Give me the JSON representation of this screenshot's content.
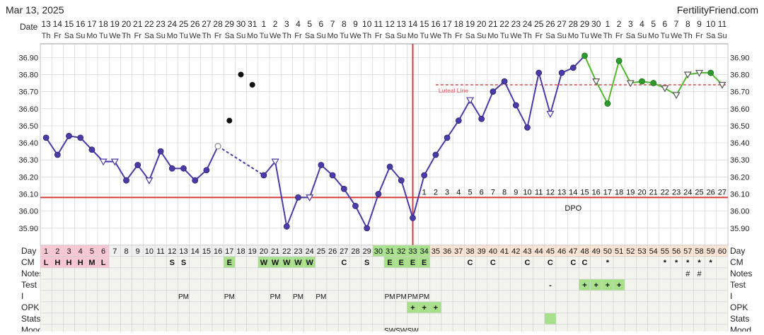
{
  "header": {
    "date": "Mar 13, 2025",
    "brand": "FertilityFriend.com",
    "date_label": "Date"
  },
  "colors": {
    "line": "#4a3ca8",
    "line_after": "#52b830",
    "coverline": "#d83a3a",
    "ovulation_line": "#d83a3a",
    "luteal_line": "#e07878",
    "menses_cell": "#f7c8d4",
    "fertile_cell": "#a8e08c",
    "luteal_cell": "#fbe4d4",
    "grid": "#d4d4d4",
    "point_hollow": "#ffffff"
  },
  "dates": [
    "13",
    "14",
    "15",
    "16",
    "17",
    "18",
    "19",
    "20",
    "21",
    "22",
    "23",
    "24",
    "25",
    "26",
    "27",
    "28",
    "29",
    "30",
    "31",
    "1",
    "2",
    "3",
    "4",
    "5",
    "6",
    "7",
    "8",
    "9",
    "10",
    "11",
    "12",
    "13",
    "14",
    "15",
    "16",
    "17",
    "18",
    "19",
    "20",
    "21",
    "22",
    "23",
    "24",
    "25",
    "26",
    "27",
    "28",
    "29",
    "30",
    "1",
    "2",
    "3",
    "4",
    "5",
    "6",
    "7",
    "8",
    "9",
    "10",
    "11"
  ],
  "weekdays": [
    "Th",
    "Fr",
    "Sa",
    "Su",
    "Mo",
    "Tu",
    "We",
    "Th",
    "Fr",
    "Sa",
    "Su",
    "Mo",
    "Tu",
    "We",
    "Th",
    "Fr",
    "Sa",
    "Su",
    "Mo",
    "Tu",
    "We",
    "Th",
    "Fr",
    "Sa",
    "Su",
    "Mo",
    "Tu",
    "We",
    "Th",
    "Fr",
    "Sa",
    "Su",
    "Mo",
    "Tu",
    "We",
    "Th",
    "Fr",
    "Sa",
    "Su",
    "Mo",
    "Tu",
    "We",
    "Th",
    "Fr",
    "Sa",
    "Su",
    "Mo",
    "Tu",
    "We",
    "Th",
    "Fr",
    "Sa",
    "Su",
    "Mo",
    "Tu",
    "We",
    "Th",
    "Fr",
    "Sa",
    "Su"
  ],
  "chart_data": {
    "type": "line",
    "x": [
      1,
      2,
      3,
      4,
      5,
      6,
      7,
      8,
      9,
      10,
      11,
      12,
      13,
      14,
      15,
      16,
      17,
      18,
      19,
      20,
      21,
      22,
      23,
      24,
      25,
      26,
      27,
      28,
      29,
      30,
      31,
      32,
      33,
      34,
      35,
      36,
      37,
      38,
      39,
      40,
      41,
      42,
      43,
      44,
      45,
      46,
      47,
      48,
      49,
      50,
      51,
      52,
      53,
      54,
      55,
      56,
      57,
      58,
      59,
      60
    ],
    "temps": [
      36.43,
      36.33,
      36.44,
      36.43,
      36.36,
      36.29,
      36.29,
      36.18,
      36.27,
      36.18,
      36.35,
      36.25,
      36.25,
      36.18,
      36.24,
      36.38,
      36.53,
      36.8,
      36.74,
      36.21,
      36.29,
      35.91,
      36.08,
      36.08,
      36.27,
      36.21,
      36.13,
      36.03,
      35.9,
      36.1,
      36.26,
      36.18,
      35.96,
      36.21,
      36.33,
      36.43,
      36.53,
      36.65,
      36.54,
      36.7,
      36.76,
      36.62,
      36.49,
      36.81,
      36.57,
      36.81,
      36.84,
      36.91,
      36.76,
      36.63,
      36.88,
      36.75,
      36.76,
      36.75,
      36.72,
      36.68,
      36.8,
      36.81,
      36.81,
      36.74
    ],
    "open_points": [
      6,
      7,
      10,
      16,
      21,
      24,
      38,
      45,
      49,
      52,
      55,
      56,
      57,
      58,
      60
    ],
    "discarded_points": [
      17,
      18,
      19
    ],
    "dashed_segments": [
      [
        16,
        20
      ]
    ],
    "green_from_day": 48,
    "ylim": [
      35.8,
      36.98
    ],
    "yticks": [
      "35.90",
      "36.00",
      "36.10",
      "36.20",
      "36.30",
      "36.40",
      "36.50",
      "36.60",
      "36.70",
      "36.80",
      "36.90"
    ],
    "coverline": 36.08,
    "ovulation_day": 33,
    "luteal_line": 36.74,
    "luteal_line_from_day": 35,
    "luteal_label": "Luteal Line",
    "dpo_numbers": [
      "1",
      "2",
      "3",
      "4",
      "5",
      "6",
      "7",
      "8",
      "9",
      "10",
      "11",
      "12",
      "13",
      "14",
      "15",
      "16",
      "17",
      "18",
      "19",
      "20",
      "21",
      "22",
      "23",
      "24",
      "25",
      "26",
      "27"
    ],
    "dpo_label": "DPO"
  },
  "rows": {
    "day_label": "Day",
    "cm_label": "CM",
    "notes_label": "Notes",
    "test_label": "Test",
    "i_label": "I",
    "opk_label": "OPK",
    "stats_label": "Stats",
    "mood_label": "Mood",
    "cm": {
      "1": "L",
      "2": "H",
      "3": "H",
      "4": "H",
      "5": "M",
      "6": "L",
      "12": "S",
      "13": "S",
      "17": "E",
      "20": "W",
      "21": "W",
      "22": "W",
      "23": "W",
      "24": "W",
      "27": "C",
      "29": "S",
      "31": "E",
      "32": "E",
      "33": "E",
      "34": "E",
      "38": "C",
      "40": "C",
      "43": "C",
      "45": "C",
      "47": "C",
      "48": "C",
      "50": "*",
      "55": "*",
      "56": "*",
      "57": "*",
      "58": "*",
      "59": "*"
    },
    "notes": {
      "57": "#",
      "58": "#"
    },
    "test": {
      "45": "-",
      "48": "+",
      "49": "+",
      "50": "+",
      "51": "+"
    },
    "intercourse": {
      "13": "PM",
      "17": "PM",
      "21": "PM",
      "23": "PM",
      "25": "PM",
      "31": "PM",
      "32": "PM",
      "33": "PM",
      "34": "PM"
    },
    "opk": {
      "33": "+",
      "34": "+",
      "35": "+"
    },
    "stats_marked": [
      45
    ],
    "mood": {
      "31": "SW",
      "32": "SW",
      "33": "SW"
    },
    "menses_days": [
      1,
      2,
      3,
      4,
      5,
      6
    ],
    "fertile_days": [
      30,
      31,
      32,
      33,
      34
    ],
    "fertile_cm_days": [
      17,
      20,
      21,
      22,
      23,
      24,
      31,
      32,
      33,
      34
    ],
    "test_positive_days": [
      48,
      49,
      50,
      51
    ],
    "opk_positive_days": [
      33,
      34,
      35
    ]
  }
}
